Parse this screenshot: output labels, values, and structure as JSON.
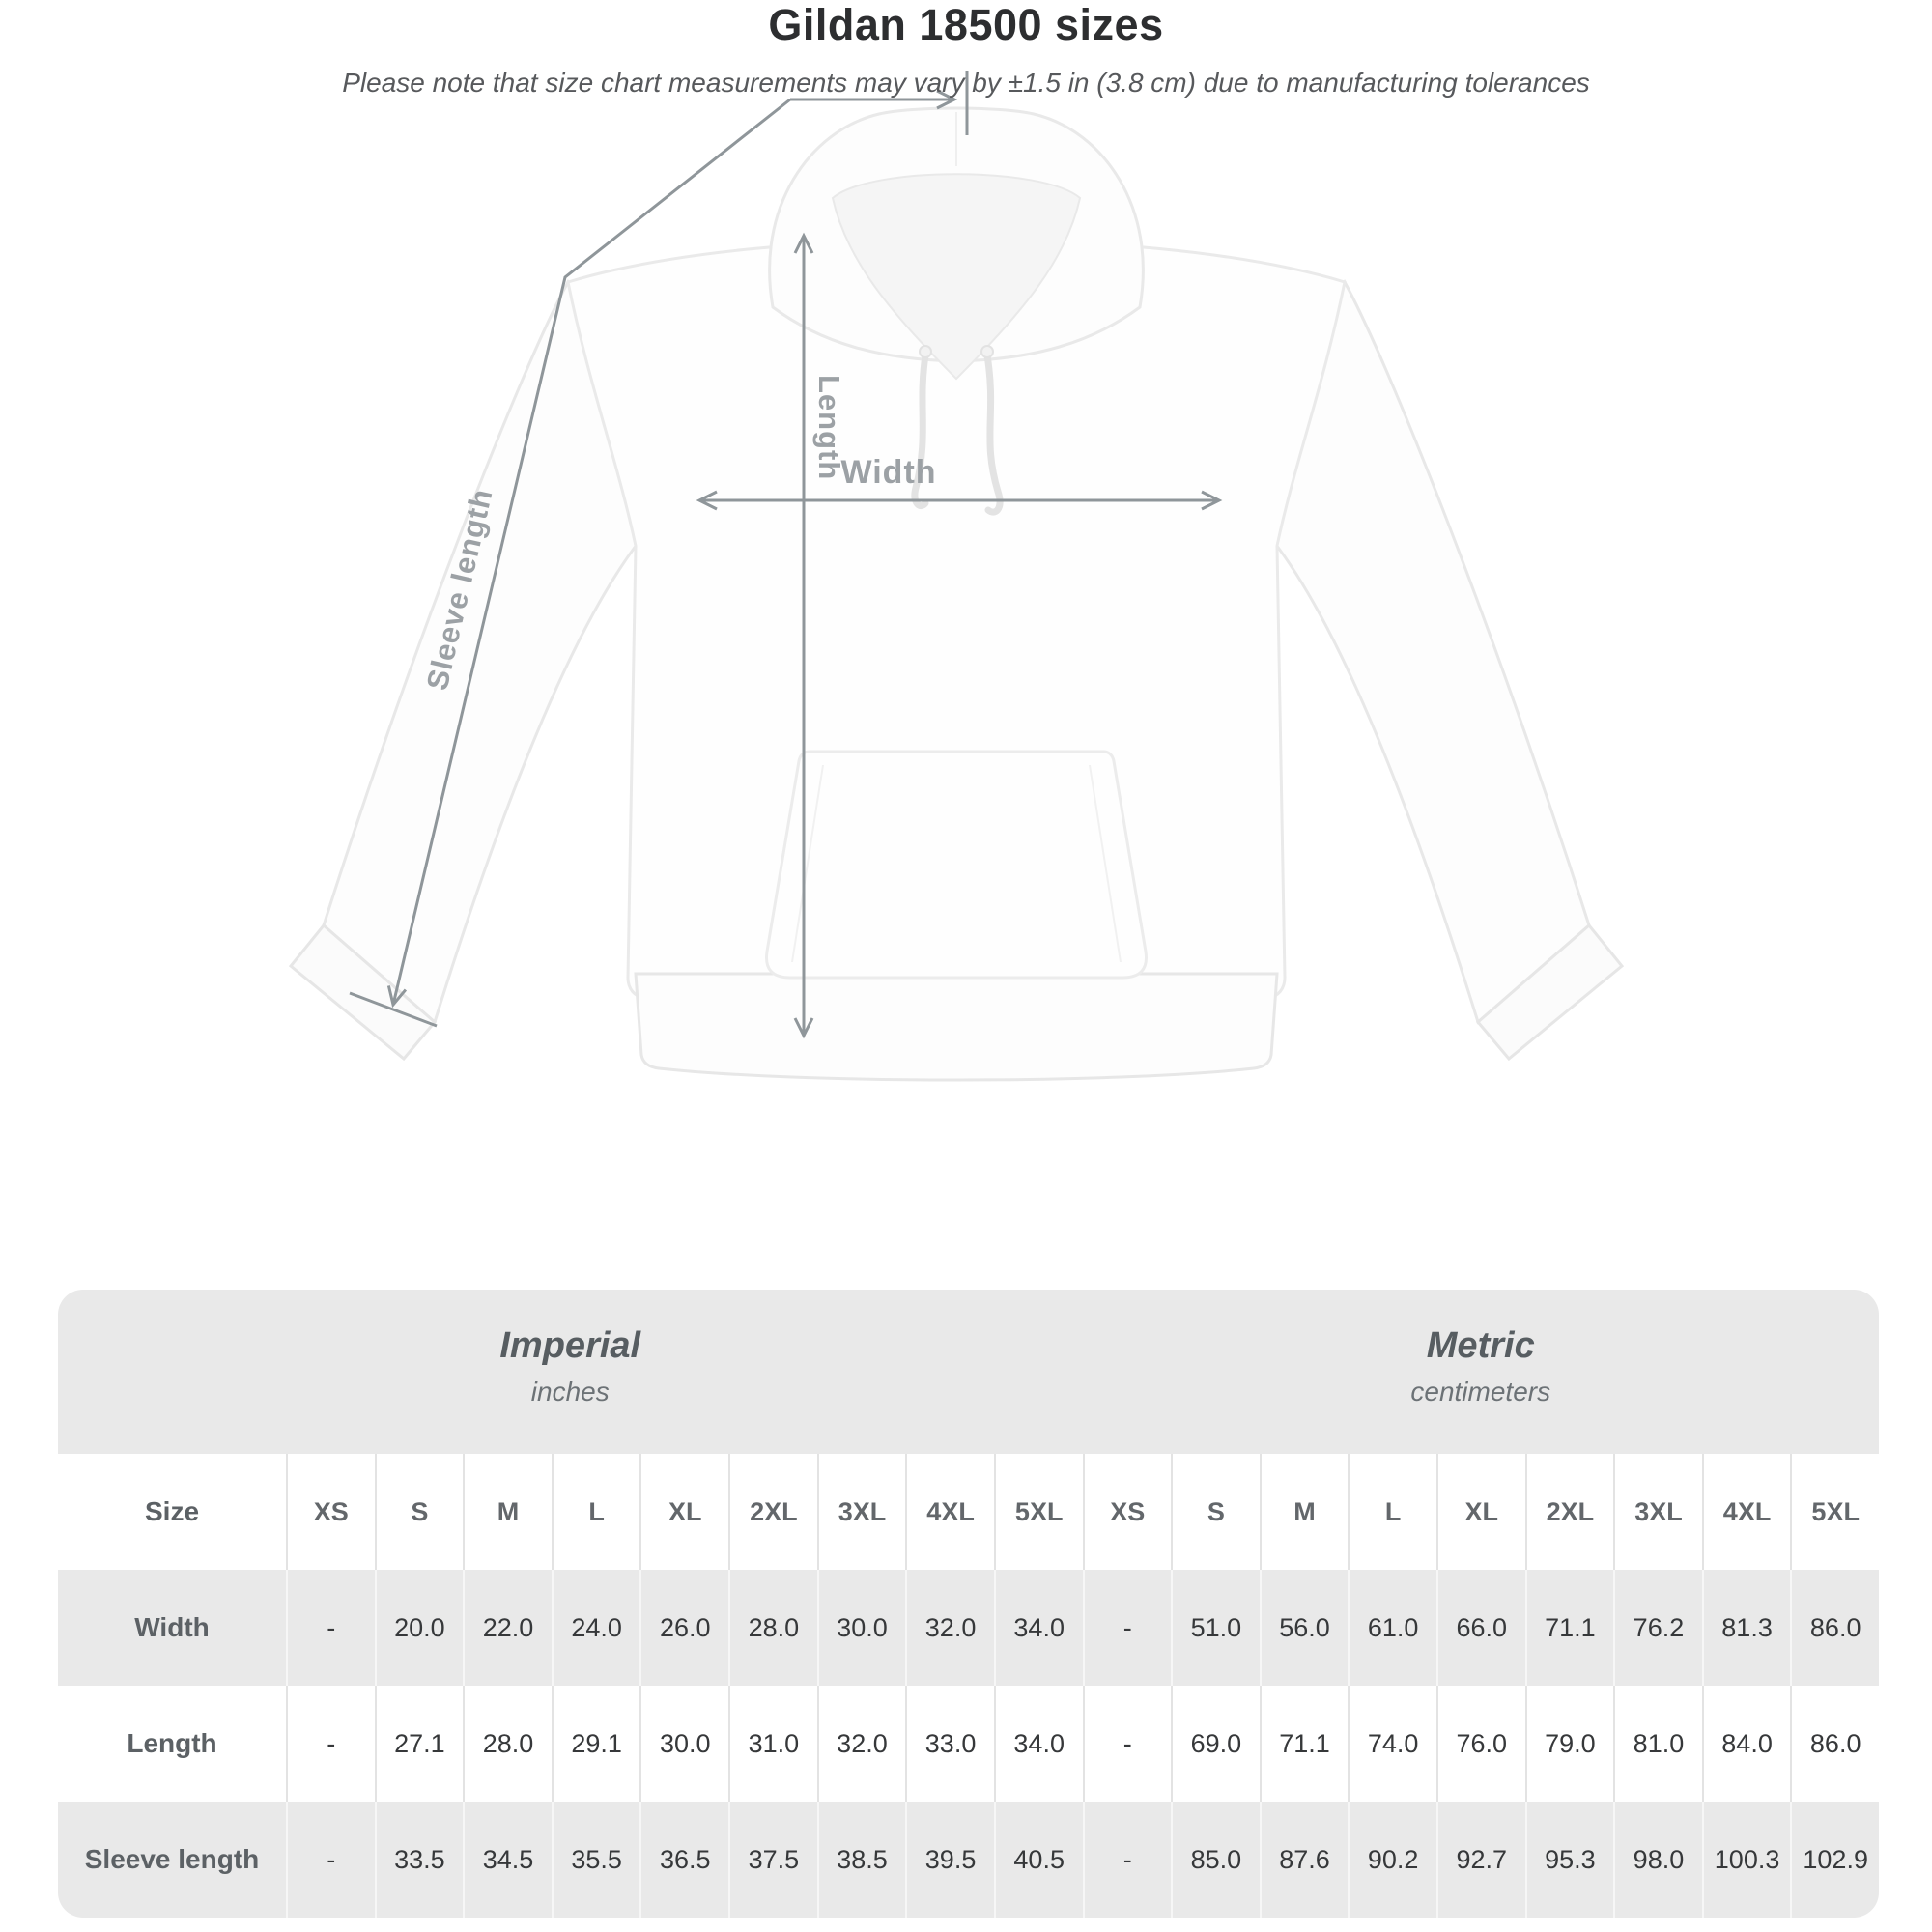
{
  "figure": {
    "length_label": "Length",
    "width_label": "Width",
    "sleeve_label": "Sleeve length"
  },
  "title": "Gildan 18500 sizes",
  "subtitle": "Please note that size chart measurements may vary by ±1.5 in (3.8 cm) due to manufacturing tolerances",
  "table": {
    "size_column_header": "Size",
    "groups": [
      {
        "label": "Imperial",
        "unit": "inches"
      },
      {
        "label": "Metric",
        "unit": "centimeters"
      }
    ],
    "sizes": [
      "XS",
      "S",
      "M",
      "L",
      "XL",
      "2XL",
      "3XL",
      "4XL",
      "5XL"
    ],
    "rows": [
      {
        "label": "Width",
        "imperial": [
          "-",
          "20.0",
          "22.0",
          "24.0",
          "26.0",
          "28.0",
          "30.0",
          "32.0",
          "34.0"
        ],
        "metric": [
          "-",
          "51.0",
          "56.0",
          "61.0",
          "66.0",
          "71.1",
          "76.2",
          "81.3",
          "86.0"
        ]
      },
      {
        "label": "Length",
        "imperial": [
          "-",
          "27.1",
          "28.0",
          "29.1",
          "30.0",
          "31.0",
          "32.0",
          "33.0",
          "34.0"
        ],
        "metric": [
          "-",
          "69.0",
          "71.1",
          "74.0",
          "76.0",
          "79.0",
          "81.0",
          "84.0",
          "86.0"
        ]
      },
      {
        "label": "Sleeve length",
        "imperial": [
          "-",
          "33.5",
          "34.5",
          "35.5",
          "36.5",
          "37.5",
          "38.5",
          "39.5",
          "40.5"
        ],
        "metric": [
          "-",
          "85.0",
          "87.6",
          "90.2",
          "92.7",
          "95.3",
          "98.0",
          "100.3",
          "102.9"
        ]
      }
    ]
  },
  "colors": {
    "measure_line": "#8f969a",
    "figure_label": "#9ca1a5",
    "table_band": "#e9e9e9",
    "title_text": "#2d2e30",
    "data_text": "#36383a"
  }
}
